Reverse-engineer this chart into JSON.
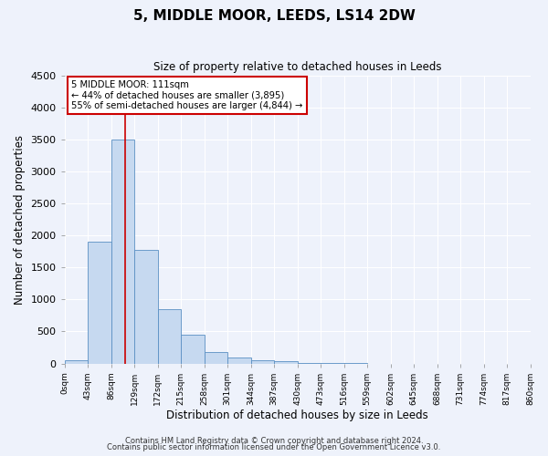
{
  "title": "5, MIDDLE MOOR, LEEDS, LS14 2DW",
  "subtitle": "Size of property relative to detached houses in Leeds",
  "xlabel": "Distribution of detached houses by size in Leeds",
  "ylabel": "Number of detached properties",
  "bin_edges": [
    0,
    43,
    86,
    129,
    172,
    215,
    258,
    301,
    344,
    387,
    430,
    473,
    516,
    559,
    602,
    645,
    688,
    731,
    774,
    817,
    860
  ],
  "bar_heights": [
    50,
    1900,
    3500,
    1775,
    850,
    450,
    175,
    90,
    55,
    30,
    10,
    5,
    5,
    0,
    0,
    0,
    0,
    0,
    0,
    0
  ],
  "bar_color": "#c6d9f0",
  "bar_edge_color": "#5a8fc3",
  "vline_x": 111,
  "vline_color": "#cc0000",
  "annotation_title": "5 MIDDLE MOOR: 111sqm",
  "annotation_line1": "← 44% of detached houses are smaller (3,895)",
  "annotation_line2": "55% of semi-detached houses are larger (4,844) →",
  "annotation_box_color": "#cc0000",
  "ylim": [
    0,
    4500
  ],
  "yticks": [
    0,
    500,
    1000,
    1500,
    2000,
    2500,
    3000,
    3500,
    4000,
    4500
  ],
  "tick_labels": [
    "0sqm",
    "43sqm",
    "86sqm",
    "129sqm",
    "172sqm",
    "215sqm",
    "258sqm",
    "301sqm",
    "344sqm",
    "387sqm",
    "430sqm",
    "473sqm",
    "516sqm",
    "559sqm",
    "602sqm",
    "645sqm",
    "688sqm",
    "731sqm",
    "774sqm",
    "817sqm",
    "860sqm"
  ],
  "footnote1": "Contains HM Land Registry data © Crown copyright and database right 2024.",
  "footnote2": "Contains public sector information licensed under the Open Government Licence v3.0.",
  "bg_color": "#eef2fb",
  "grid_color": "#ffffff"
}
